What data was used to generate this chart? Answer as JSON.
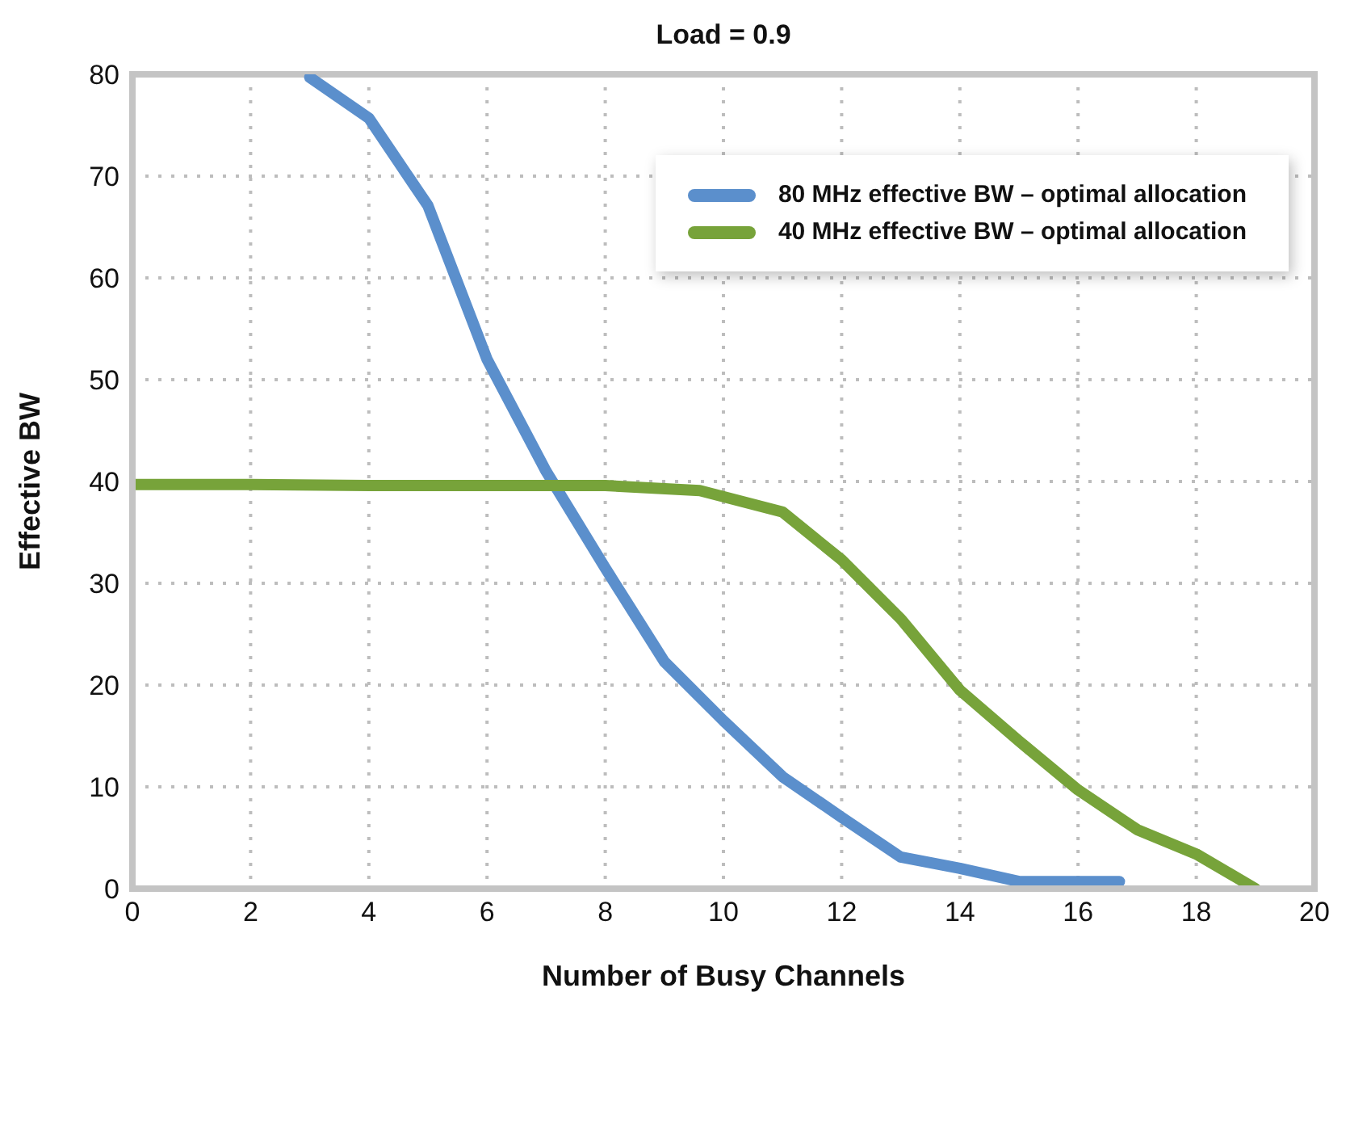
{
  "chart_data": {
    "type": "line",
    "title": "Load = 0.9",
    "xlabel": "Number of Busy Channels",
    "ylabel": "Effective BW",
    "series": [
      {
        "name": "80 MHz effective BW – optimal allocation",
        "color": "#5b8fcc",
        "x": [
          3,
          4,
          5,
          6,
          7,
          8,
          9,
          10,
          11,
          12,
          13,
          14,
          15,
          16,
          16.7
        ],
        "values": [
          79.7,
          75.7,
          67.1,
          52,
          41,
          31.5,
          22.3,
          16.5,
          11,
          7,
          3.1,
          2,
          0.7,
          0.7,
          0.7
        ]
      },
      {
        "name": "40 MHz effective BW – optimal allocation",
        "color": "#77a33a",
        "x": [
          0,
          2,
          4,
          6,
          8,
          9.6,
          11,
          12,
          13,
          14,
          15,
          16,
          17,
          18,
          19
        ],
        "values": [
          39.7,
          39.7,
          39.6,
          39.6,
          39.6,
          39.1,
          37,
          32.3,
          26.5,
          19.5,
          14.5,
          9.7,
          5.8,
          3.4,
          0
        ]
      }
    ],
    "xlim": [
      0,
      20
    ],
    "xticks": [
      0,
      2,
      4,
      6,
      8,
      10,
      12,
      14,
      16,
      18,
      20
    ],
    "ylim": [
      0,
      80
    ],
    "yticks": [
      0,
      10,
      20,
      30,
      40,
      50,
      60,
      70,
      80
    ],
    "grid": true,
    "legend": "top right",
    "marker": "none",
    "line_style": "solid"
  }
}
